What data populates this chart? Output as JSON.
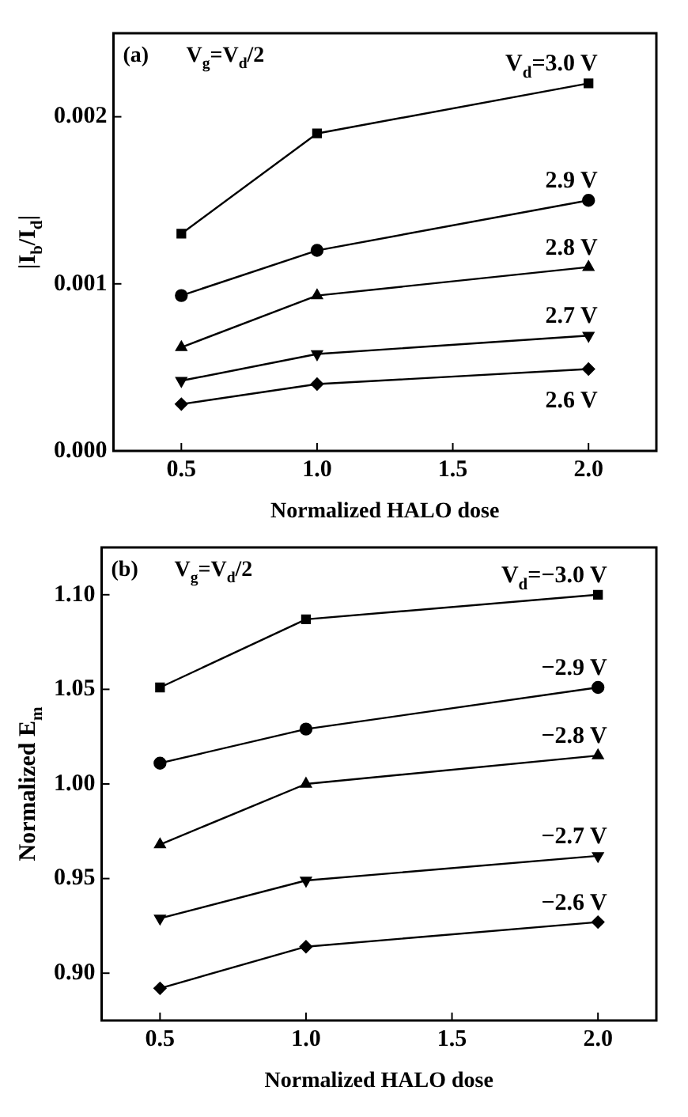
{
  "chart_data": [
    {
      "type": "line",
      "xlabel": "Normalized HALO dose",
      "ylabel": "|I$_{b}$/I$_{d}$|",
      "annotations": [
        "(a)",
        "V$_{g}$=V$_{d}$/2"
      ],
      "x": [
        0.5,
        1.0,
        2.0
      ],
      "xlim": [
        0.25,
        2.25
      ],
      "xticks": [
        {
          "value": 0.5,
          "label": "0.5"
        },
        {
          "value": 1,
          "label": "1.0"
        },
        {
          "value": 1.5,
          "label": "1.5"
        },
        {
          "value": 2,
          "label": "2.0"
        }
      ],
      "ylim": [
        0,
        0.0025
      ],
      "yticks": [
        {
          "value": 0,
          "label": "0.000"
        },
        0.001,
        0.002
      ],
      "grid": false,
      "legend": false,
      "series": [
        {
          "name": "V$_{d}$=3.0 V",
          "color": "#000000",
          "marker": "square",
          "values": [
            0.0013,
            0.0019,
            0.0022
          ]
        },
        {
          "name": "2.9 V",
          "color": "#000000",
          "marker": "circle",
          "values": [
            0.00093,
            0.0012,
            0.0015
          ]
        },
        {
          "name": "2.8 V",
          "color": "#000000",
          "marker": "triangle",
          "values": [
            0.00062,
            0.00093,
            0.0011
          ]
        },
        {
          "name": "2.7 V",
          "color": "#000000",
          "marker": "triangle-down",
          "values": [
            0.00042,
            0.00058,
            0.00069
          ]
        },
        {
          "name": "2.6 V",
          "color": "#000000",
          "marker": "diamond",
          "values": [
            0.00028,
            0.0004,
            0.00049
          ]
        }
      ]
    },
    {
      "type": "line",
      "xlabel": "Normalized HALO dose",
      "ylabel": "Normalized E$_{m}$",
      "annotations": [
        "(b)",
        "V$_{g}$=V$_{d}$/2"
      ],
      "x": [
        0.5,
        1.0,
        2.0
      ],
      "xlim": [
        0.3,
        2.2
      ],
      "xticks": [
        {
          "value": 0.5,
          "label": "0.5"
        },
        {
          "value": 1,
          "label": "1.0"
        },
        {
          "value": 1.5,
          "label": "1.5"
        },
        {
          "value": 2,
          "label": "2.0"
        }
      ],
      "ylim": [
        0.875,
        1.125
      ],
      "yticks": [
        {
          "value": 0.9,
          "label": "0.90"
        },
        0.95,
        {
          "value": 1,
          "label": "1.00"
        },
        1.05,
        {
          "value": 1.1,
          "label": "1.10"
        }
      ],
      "grid": false,
      "legend": false,
      "series": [
        {
          "name": "V$_{d}$=−3.0 V",
          "color": "#000000",
          "marker": "square",
          "values": [
            1.051,
            1.087,
            1.1
          ]
        },
        {
          "name": "−2.9 V",
          "color": "#000000",
          "marker": "circle",
          "values": [
            1.011,
            1.029,
            1.051
          ]
        },
        {
          "name": "−2.8 V",
          "color": "#000000",
          "marker": "triangle",
          "values": [
            0.968,
            1.0,
            1.015
          ]
        },
        {
          "name": "−2.7 V",
          "color": "#000000",
          "marker": "triangle-down",
          "values": [
            0.929,
            0.949,
            0.962
          ]
        },
        {
          "name": "−2.6 V",
          "color": "#000000",
          "marker": "diamond",
          "values": [
            0.892,
            0.914,
            0.927
          ]
        }
      ]
    }
  ]
}
